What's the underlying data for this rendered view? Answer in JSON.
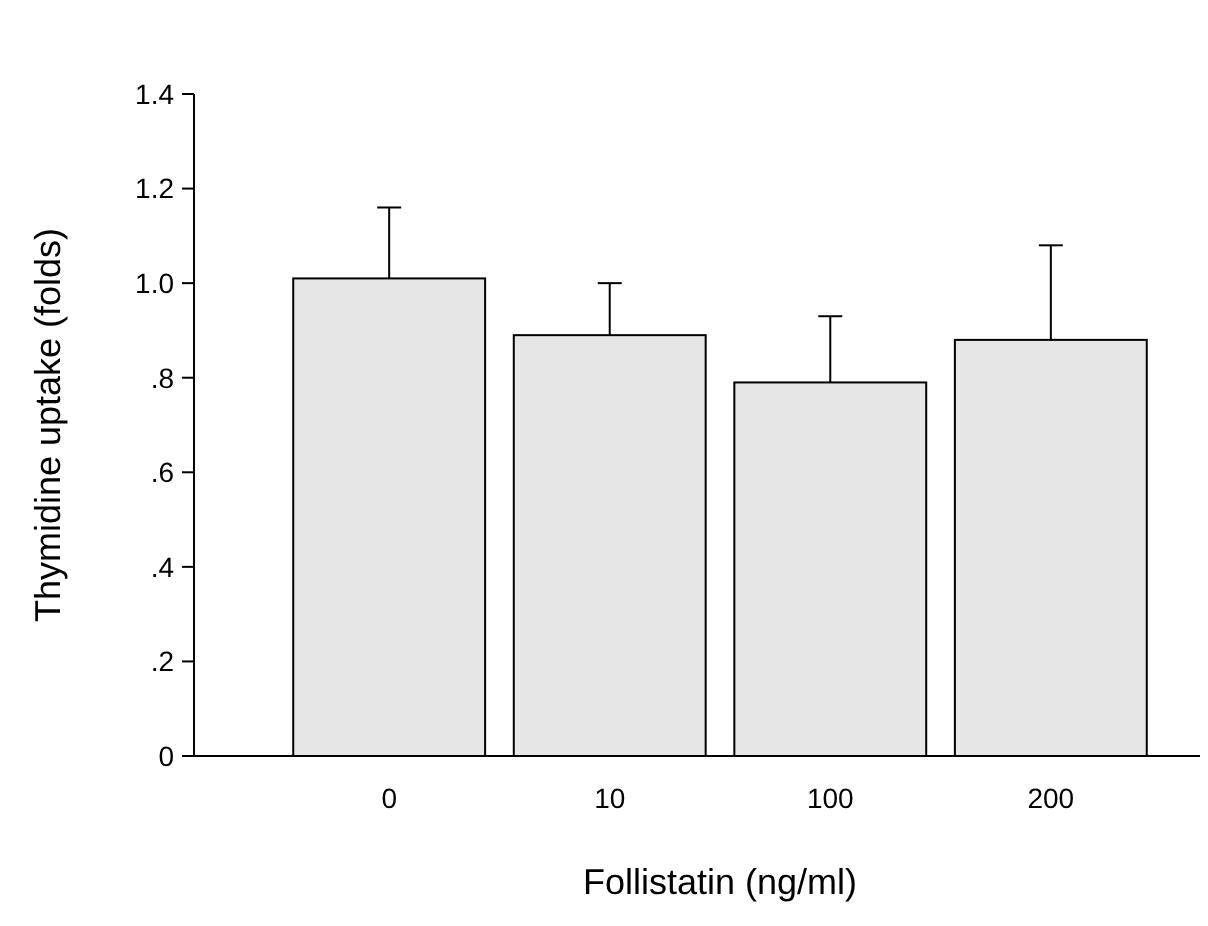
{
  "chart_data": {
    "type": "bar",
    "xlabel": "Follistatin (ng/ml)",
    "ylabel": "Thymidine uptake (folds)",
    "categories": [
      "0",
      "10",
      "100",
      "200"
    ],
    "values": [
      1.01,
      0.89,
      0.79,
      0.88
    ],
    "errors": [
      [
        1.01,
        1.16
      ],
      [
        0.89,
        1.0
      ],
      [
        0.79,
        0.93
      ],
      [
        0.88,
        1.08
      ]
    ],
    "color": "#e6e6e6",
    "ylim": [
      0,
      1.4
    ],
    "yticks": [
      0,
      {
        "value": 0.2,
        "label": ".2"
      },
      {
        "value": 0.4,
        "label": ".4"
      },
      {
        "value": 0.6,
        "label": ".6"
      },
      {
        "value": 0.8,
        "label": ".8"
      },
      {
        "value": 1,
        "label": "1.0"
      },
      {
        "value": 1.2,
        "label": "1.2"
      },
      {
        "value": 1.4,
        "label": "1.4"
      }
    ],
    "grid": false
  }
}
